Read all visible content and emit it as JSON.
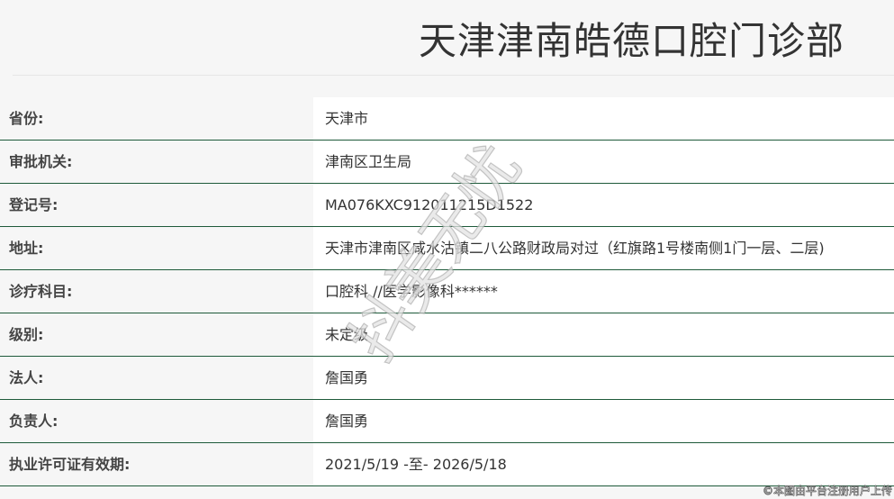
{
  "title": "天津津南皓德口腔门诊部",
  "rows": [
    {
      "label": "省份:",
      "value": "天津市"
    },
    {
      "label": "审批机关:",
      "value": "津南区卫生局"
    },
    {
      "label": "登记号:",
      "value": "MA076KXC912011215D1522"
    },
    {
      "label": "地址:",
      "value": "天津市津南区咸水沽镇二八公路财政局对过（红旗路1号楼南侧1门一层、二层)"
    },
    {
      "label": "诊疗科目:",
      "value": "口腔科 //医学影像科******"
    },
    {
      "label": "级别:",
      "value": "未定级"
    },
    {
      "label": "法人:",
      "value": "詹国勇"
    },
    {
      "label": "负责人:",
      "value": "詹国勇"
    },
    {
      "label": "执业许可证有效期:",
      "value": "2021/5/19 -至- 2026/5/18"
    }
  ],
  "watermark": "抖美无忧",
  "credit": "©本图由平台注册用户上传",
  "colors": {
    "row_border": "#1e5a3a",
    "label_bg": "#f6f6f6",
    "value_bg": "#ffffff"
  }
}
